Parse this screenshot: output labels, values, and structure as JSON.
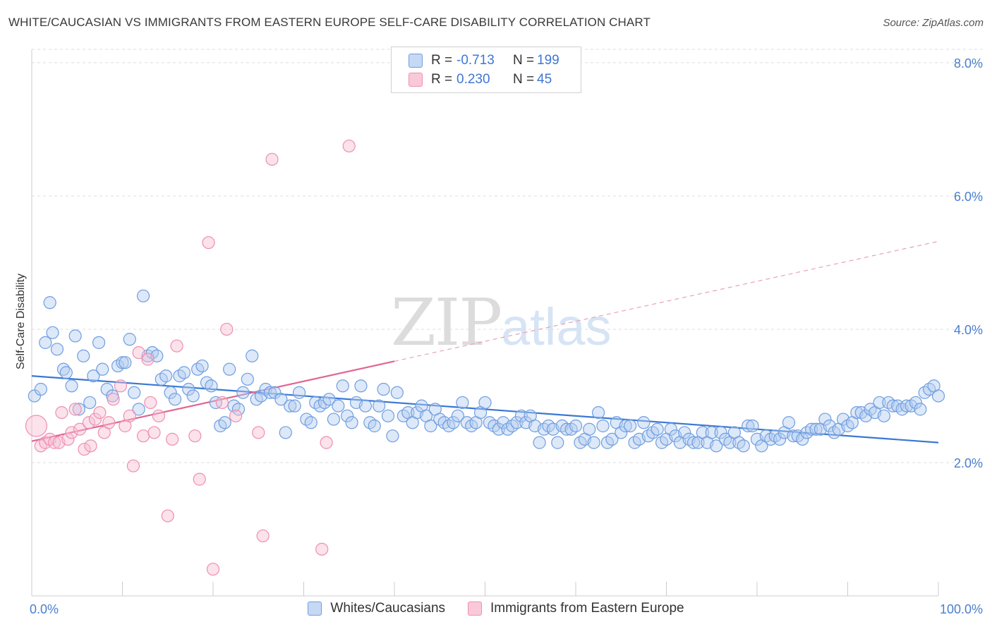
{
  "header": {
    "title": "WHITE/CAUCASIAN VS IMMIGRANTS FROM EASTERN EUROPE SELF-CARE DISABILITY CORRELATION CHART",
    "source": "Source: ZipAtlas.com"
  },
  "watermark": {
    "zip": "ZIP",
    "atlas": "atlas"
  },
  "legend": {
    "rows": [
      {
        "r_label": "R =",
        "r_value": "-0.713",
        "n_label": "N =",
        "n_value": "199",
        "color": "#6f9ee0"
      },
      {
        "r_label": "R =",
        "r_value": "0.230",
        "n_label": "N =",
        "n_value": "45",
        "color": "#ee8fb0"
      }
    ]
  },
  "bottom_legend": {
    "items": [
      {
        "label": "Whites/Caucasians",
        "color": "#6f9ee0"
      },
      {
        "label": "Immigrants from Eastern Europe",
        "color": "#ee8fb0"
      }
    ]
  },
  "chart_data": {
    "type": "scatter",
    "title": "WHITE/CAUCASIAN VS IMMIGRANTS FROM EASTERN EUROPE SELF-CARE DISABILITY CORRELATION CHART",
    "ylabel": "Self-Care Disability",
    "xlabel": "",
    "xlim": [
      0,
      100
    ],
    "ylim": [
      0,
      8.2
    ],
    "y_ticks": [
      2,
      4,
      6,
      8
    ],
    "y_tick_labels": [
      "2.0%",
      "4.0%",
      "6.0%",
      "8.0%"
    ],
    "x_tick_labels": [
      "0.0%",
      "100.0%"
    ],
    "grid": "horizontal dashed",
    "legend_position": "top-center",
    "series": [
      {
        "name": "Whites/Caucasians",
        "color": "#6f9ee0",
        "trend": {
          "x0": 0,
          "y0": 3.3,
          "x1": 100,
          "y1": 2.3
        },
        "points": [
          [
            0.3,
            3.0
          ],
          [
            1,
            3.1
          ],
          [
            1.5,
            3.8
          ],
          [
            2,
            4.4
          ],
          [
            2.3,
            3.95
          ],
          [
            2.8,
            3.7
          ],
          [
            3.5,
            3.4
          ],
          [
            3.8,
            3.35
          ],
          [
            4.4,
            3.15
          ],
          [
            4.8,
            3.9
          ],
          [
            5.2,
            2.8
          ],
          [
            5.7,
            3.6
          ],
          [
            6.4,
            2.9
          ],
          [
            6.8,
            3.3
          ],
          [
            7.4,
            3.8
          ],
          [
            7.8,
            3.4
          ],
          [
            8.3,
            3.1
          ],
          [
            8.9,
            3.0
          ],
          [
            9.5,
            3.45
          ],
          [
            10,
            3.5
          ],
          [
            10.3,
            3.5
          ],
          [
            10.8,
            3.85
          ],
          [
            11.3,
            3.05
          ],
          [
            11.8,
            2.8
          ],
          [
            12.3,
            4.5
          ],
          [
            12.8,
            3.6
          ],
          [
            13.3,
            3.65
          ],
          [
            13.8,
            3.6
          ],
          [
            14.3,
            3.25
          ],
          [
            14.8,
            3.3
          ],
          [
            15.3,
            3.05
          ],
          [
            15.8,
            2.95
          ],
          [
            16.3,
            3.3
          ],
          [
            16.8,
            3.35
          ],
          [
            17.3,
            3.1
          ],
          [
            17.8,
            3.0
          ],
          [
            18.3,
            3.4
          ],
          [
            18.8,
            3.45
          ],
          [
            19.3,
            3.2
          ],
          [
            19.8,
            3.15
          ],
          [
            20.3,
            2.9
          ],
          [
            20.8,
            2.55
          ],
          [
            21.3,
            2.6
          ],
          [
            21.8,
            3.4
          ],
          [
            22.3,
            2.85
          ],
          [
            22.8,
            2.8
          ],
          [
            23.3,
            3.05
          ],
          [
            23.8,
            3.25
          ],
          [
            24.3,
            3.6
          ],
          [
            24.8,
            2.95
          ],
          [
            25.3,
            3.0
          ],
          [
            25.8,
            3.1
          ],
          [
            26.3,
            3.05
          ],
          [
            26.8,
            3.05
          ],
          [
            27.5,
            2.95
          ],
          [
            28,
            2.45
          ],
          [
            28.5,
            2.85
          ],
          [
            29,
            2.85
          ],
          [
            29.5,
            3.05
          ],
          [
            30.3,
            2.65
          ],
          [
            30.8,
            2.6
          ],
          [
            31.3,
            2.9
          ],
          [
            31.8,
            2.85
          ],
          [
            32.3,
            2.9
          ],
          [
            32.8,
            2.95
          ],
          [
            33.3,
            2.65
          ],
          [
            33.8,
            2.85
          ],
          [
            34.3,
            3.15
          ],
          [
            34.8,
            2.7
          ],
          [
            35.3,
            2.6
          ],
          [
            35.8,
            2.9
          ],
          [
            36.3,
            3.15
          ],
          [
            36.8,
            2.85
          ],
          [
            37.3,
            2.6
          ],
          [
            37.8,
            2.55
          ],
          [
            38.3,
            2.85
          ],
          [
            38.8,
            3.1
          ],
          [
            39.3,
            2.7
          ],
          [
            39.8,
            2.4
          ],
          [
            40.3,
            3.05
          ],
          [
            41,
            2.7
          ],
          [
            41.5,
            2.75
          ],
          [
            42,
            2.6
          ],
          [
            42.5,
            2.75
          ],
          [
            43,
            2.85
          ],
          [
            43.5,
            2.7
          ],
          [
            44,
            2.55
          ],
          [
            44.5,
            2.8
          ],
          [
            45,
            2.65
          ],
          [
            45.5,
            2.6
          ],
          [
            46,
            2.55
          ],
          [
            46.5,
            2.6
          ],
          [
            47,
            2.7
          ],
          [
            47.5,
            2.9
          ],
          [
            48,
            2.6
          ],
          [
            48.5,
            2.55
          ],
          [
            49,
            2.6
          ],
          [
            49.5,
            2.75
          ],
          [
            50,
            2.9
          ],
          [
            50.5,
            2.6
          ],
          [
            51,
            2.55
          ],
          [
            51.5,
            2.5
          ],
          [
            52,
            2.6
          ],
          [
            52.5,
            2.5
          ],
          [
            53,
            2.55
          ],
          [
            53.5,
            2.6
          ],
          [
            54,
            2.7
          ],
          [
            54.5,
            2.6
          ],
          [
            55,
            2.7
          ],
          [
            55.5,
            2.55
          ],
          [
            56,
            2.3
          ],
          [
            56.5,
            2.5
          ],
          [
            57,
            2.55
          ],
          [
            57.5,
            2.5
          ],
          [
            58,
            2.3
          ],
          [
            58.5,
            2.55
          ],
          [
            59,
            2.5
          ],
          [
            59.5,
            2.5
          ],
          [
            60,
            2.55
          ],
          [
            60.5,
            2.3
          ],
          [
            61,
            2.35
          ],
          [
            61.5,
            2.5
          ],
          [
            62,
            2.3
          ],
          [
            62.5,
            2.75
          ],
          [
            63,
            2.55
          ],
          [
            63.5,
            2.3
          ],
          [
            64,
            2.35
          ],
          [
            64.5,
            2.6
          ],
          [
            65,
            2.45
          ],
          [
            65.5,
            2.55
          ],
          [
            66,
            2.55
          ],
          [
            66.5,
            2.3
          ],
          [
            67,
            2.35
          ],
          [
            67.5,
            2.6
          ],
          [
            68,
            2.4
          ],
          [
            68.5,
            2.45
          ],
          [
            69,
            2.5
          ],
          [
            69.5,
            2.3
          ],
          [
            70,
            2.35
          ],
          [
            70.5,
            2.5
          ],
          [
            71,
            2.4
          ],
          [
            71.5,
            2.3
          ],
          [
            72,
            2.45
          ],
          [
            72.5,
            2.35
          ],
          [
            73,
            2.3
          ],
          [
            73.5,
            2.3
          ],
          [
            74,
            2.45
          ],
          [
            74.5,
            2.3
          ],
          [
            75,
            2.45
          ],
          [
            75.5,
            2.25
          ],
          [
            76,
            2.45
          ],
          [
            76.5,
            2.35
          ],
          [
            77,
            2.3
          ],
          [
            77.5,
            2.45
          ],
          [
            78,
            2.3
          ],
          [
            78.5,
            2.25
          ],
          [
            79,
            2.55
          ],
          [
            79.5,
            2.55
          ],
          [
            80,
            2.35
          ],
          [
            80.5,
            2.25
          ],
          [
            81,
            2.4
          ],
          [
            81.5,
            2.35
          ],
          [
            82,
            2.4
          ],
          [
            82.5,
            2.35
          ],
          [
            83,
            2.45
          ],
          [
            83.5,
            2.6
          ],
          [
            84,
            2.4
          ],
          [
            84.5,
            2.4
          ],
          [
            85,
            2.35
          ],
          [
            85.5,
            2.45
          ],
          [
            86,
            2.5
          ],
          [
            86.5,
            2.5
          ],
          [
            87,
            2.5
          ],
          [
            87.5,
            2.65
          ],
          [
            88,
            2.55
          ],
          [
            88.5,
            2.45
          ],
          [
            89,
            2.5
          ],
          [
            89.5,
            2.65
          ],
          [
            90,
            2.55
          ],
          [
            90.5,
            2.6
          ],
          [
            91,
            2.75
          ],
          [
            91.5,
            2.75
          ],
          [
            92,
            2.7
          ],
          [
            92.5,
            2.8
          ],
          [
            93,
            2.75
          ],
          [
            93.5,
            2.9
          ],
          [
            94,
            2.7
          ],
          [
            94.5,
            2.9
          ],
          [
            95,
            2.85
          ],
          [
            95.5,
            2.85
          ],
          [
            96,
            2.8
          ],
          [
            96.5,
            2.85
          ],
          [
            97,
            2.85
          ],
          [
            97.5,
            2.9
          ],
          [
            98,
            2.8
          ],
          [
            98.5,
            3.05
          ],
          [
            99,
            3.1
          ],
          [
            99.5,
            3.15
          ],
          [
            100,
            3.0
          ]
        ]
      },
      {
        "name": "Immigrants from Eastern Europe",
        "color": "#ee8fb0",
        "trend": {
          "x0": 0,
          "y0": 2.32,
          "x1": 40,
          "y1": 3.52,
          "x_dash_end": 100,
          "y_dash_end": 5.32
        },
        "points": [
          [
            0.5,
            2.55
          ],
          [
            1,
            2.25
          ],
          [
            1.5,
            2.3
          ],
          [
            2,
            2.35
          ],
          [
            2.5,
            2.3
          ],
          [
            3,
            2.3
          ],
          [
            3.3,
            2.75
          ],
          [
            4,
            2.35
          ],
          [
            4.4,
            2.45
          ],
          [
            4.8,
            2.8
          ],
          [
            5.3,
            2.5
          ],
          [
            5.8,
            2.2
          ],
          [
            6.3,
            2.6
          ],
          [
            6.5,
            2.25
          ],
          [
            7,
            2.65
          ],
          [
            7.5,
            2.75
          ],
          [
            8,
            2.45
          ],
          [
            8.5,
            2.6
          ],
          [
            9,
            2.95
          ],
          [
            9.8,
            3.15
          ],
          [
            10.3,
            2.55
          ],
          [
            10.8,
            2.7
          ],
          [
            11.2,
            1.95
          ],
          [
            11.8,
            3.65
          ],
          [
            12.3,
            2.4
          ],
          [
            12.8,
            3.55
          ],
          [
            13.1,
            2.9
          ],
          [
            13.5,
            2.45
          ],
          [
            14,
            2.7
          ],
          [
            15,
            1.2
          ],
          [
            15.5,
            2.35
          ],
          [
            16,
            3.75
          ],
          [
            18,
            2.4
          ],
          [
            18.5,
            1.75
          ],
          [
            19.5,
            5.3
          ],
          [
            20,
            0.4
          ],
          [
            21,
            2.9
          ],
          [
            21.5,
            4.0
          ],
          [
            22.5,
            2.7
          ],
          [
            25,
            2.45
          ],
          [
            25.5,
            0.9
          ],
          [
            26.5,
            6.55
          ],
          [
            32,
            0.7
          ],
          [
            32.5,
            2.3
          ],
          [
            35,
            6.75
          ]
        ]
      }
    ]
  }
}
